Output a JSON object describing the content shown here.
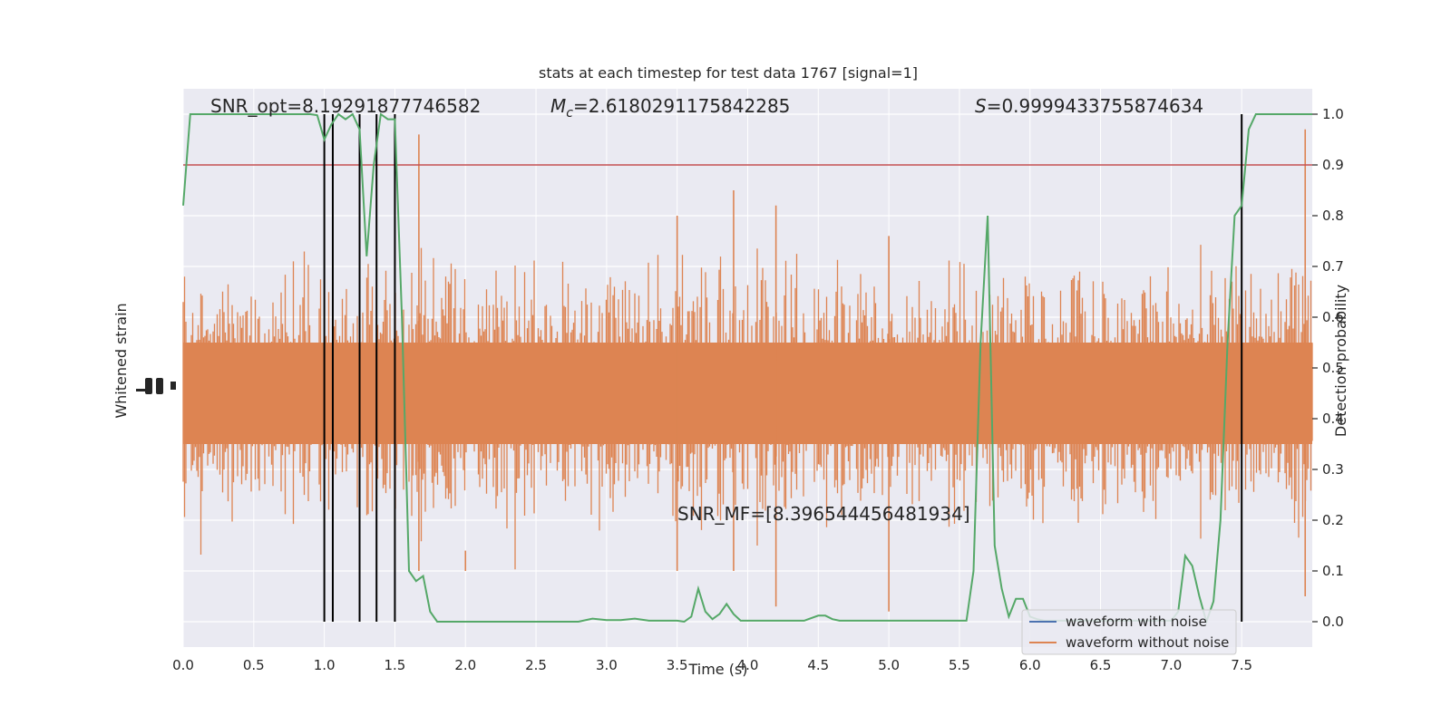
{
  "chart_data": {
    "type": "line",
    "title": "stats at each timestep for test data 1767 [signal=1]",
    "xlabel": "Time (s)",
    "ylabel_left": "Whitened strain",
    "ylabel_right": "Detection probability",
    "xlim": [
      0.0,
      8.0
    ],
    "ylim_right": [
      -0.05,
      1.05
    ],
    "x_ticks": [
      "0.0",
      "0.5",
      "1.0",
      "1.5",
      "2.0",
      "2.5",
      "3.0",
      "3.5",
      "4.0",
      "4.5",
      "5.0",
      "5.5",
      "6.0",
      "6.5",
      "7.0",
      "7.5"
    ],
    "x_tick_values": [
      0.0,
      0.5,
      1.0,
      1.5,
      2.0,
      2.5,
      3.0,
      3.5,
      4.0,
      4.5,
      5.0,
      5.5,
      6.0,
      6.5,
      7.0,
      7.5
    ],
    "y_right_ticks": [
      "0.0",
      "0.1",
      "0.2",
      "0.3",
      "0.4",
      "0.5",
      "0.6",
      "0.7",
      "0.8",
      "0.9",
      "1.0"
    ],
    "y_right_tick_values": [
      0.0,
      0.1,
      0.2,
      0.3,
      0.4,
      0.5,
      0.6,
      0.7,
      0.8,
      0.9,
      1.0
    ],
    "grid": true,
    "annotations": {
      "snr_opt": "SNR_opt=8.19291877746582",
      "mc_symbol": "M",
      "mc_subscript": "c",
      "mc_value": "=2.6180291175842285",
      "s_symbol": "S",
      "s_value": "=0.9999433755874634",
      "snr_mf": "SNR_MF=[8.396544456481934]"
    },
    "threshold": {
      "y": 0.9,
      "color": "#c44e52"
    },
    "trigger_lines_x": [
      1.0,
      1.06,
      1.25,
      1.37,
      1.5,
      7.5
    ],
    "series": [
      {
        "name": "waveform with noise",
        "color": "#4c72b0",
        "axis": "left",
        "note": "hidden behind orange noise trace"
      },
      {
        "name": "waveform without noise",
        "color": "#dd8452",
        "axis": "left",
        "noise_style": true,
        "center": 0.45,
        "band_half_width": 0.1,
        "typical_peak_half_width": 0.25,
        "max_spike_up": 0.97,
        "max_spike_down": -0.02
      },
      {
        "name": "detection probability",
        "color": "#55a868",
        "axis": "right",
        "x": [
          0.0,
          0.05,
          0.1,
          0.2,
          0.3,
          0.4,
          0.5,
          0.6,
          0.7,
          0.8,
          0.9,
          0.95,
          1.0,
          1.05,
          1.1,
          1.15,
          1.2,
          1.25,
          1.3,
          1.35,
          1.4,
          1.45,
          1.5,
          1.55,
          1.6,
          1.65,
          1.7,
          1.75,
          1.8,
          1.9,
          2.0,
          2.2,
          2.4,
          2.6,
          2.8,
          2.9,
          3.0,
          3.1,
          3.2,
          3.3,
          3.4,
          3.5,
          3.55,
          3.6,
          3.65,
          3.7,
          3.75,
          3.8,
          3.85,
          3.9,
          3.95,
          4.0,
          4.1,
          4.2,
          4.3,
          4.4,
          4.5,
          4.55,
          4.6,
          4.65,
          4.7,
          4.8,
          4.9,
          5.0,
          5.2,
          5.4,
          5.55,
          5.6,
          5.65,
          5.7,
          5.75,
          5.8,
          5.85,
          5.9,
          5.95,
          6.0,
          6.05,
          6.1,
          6.2,
          6.3,
          6.4,
          6.5,
          6.6,
          6.7,
          6.8,
          6.9,
          7.0,
          7.05,
          7.1,
          7.15,
          7.2,
          7.25,
          7.3,
          7.35,
          7.4,
          7.45,
          7.5,
          7.55,
          7.6,
          7.65,
          7.7,
          7.8,
          7.9,
          8.0
        ],
        "y": [
          0.82,
          1.0,
          1.0,
          1.0,
          1.0,
          1.0,
          1.0,
          1.0,
          1.0,
          1.0,
          1.0,
          0.998,
          0.95,
          0.98,
          1.0,
          0.99,
          1.0,
          0.97,
          0.72,
          0.9,
          1.0,
          0.99,
          0.99,
          0.6,
          0.1,
          0.08,
          0.09,
          0.02,
          0.0,
          0.0,
          0.0,
          0.0,
          0.0,
          0.0,
          0.0,
          0.006,
          0.003,
          0.003,
          0.006,
          0.002,
          0.002,
          0.002,
          0.0,
          0.01,
          0.065,
          0.02,
          0.005,
          0.015,
          0.035,
          0.015,
          0.002,
          0.002,
          0.002,
          0.002,
          0.002,
          0.002,
          0.012,
          0.012,
          0.005,
          0.002,
          0.002,
          0.002,
          0.002,
          0.002,
          0.002,
          0.002,
          0.002,
          0.1,
          0.55,
          0.8,
          0.15,
          0.065,
          0.01,
          0.045,
          0.045,
          0.01,
          0.005,
          0.002,
          0.002,
          0.002,
          0.002,
          0.002,
          0.002,
          0.002,
          0.002,
          0.002,
          0.002,
          0.02,
          0.13,
          0.11,
          0.05,
          0.0,
          0.04,
          0.2,
          0.55,
          0.8,
          0.82,
          0.97,
          1.0,
          1.0,
          1.0,
          1.0,
          1.0,
          1.0
        ]
      }
    ],
    "legend": {
      "placement": "bottom-right",
      "entries": [
        {
          "label": "waveform with noise",
          "color": "#4c72b0"
        },
        {
          "label": "waveform without noise",
          "color": "#dd8452"
        }
      ]
    },
    "colors": {
      "axes_background": "#eaeaf2",
      "grid": "#ffffff",
      "trigger_lines": "#000000"
    }
  }
}
